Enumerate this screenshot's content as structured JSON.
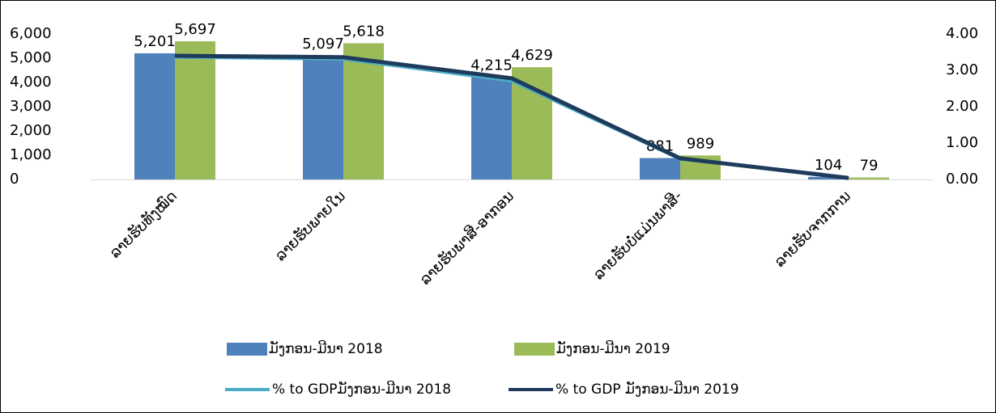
{
  "chart_data": {
    "type": "bar_line",
    "categories": [
      "ລາຍຮັບທັງໝົດ",
      "ລາຍຮັບພາຍໃນ",
      "ລາຍຮັບພາສີ-ອາກອນ",
      "ລາຍຮັບບໍ່ແມ່ນພາສີ-",
      "ລາຍຮັບຈາກການ"
    ],
    "series": [
      {
        "name": "ມັງກອນ-ມີນາ 2018",
        "color": "#4f81bd",
        "type": "bar",
        "values": [
          5201,
          5097,
          4215,
          881,
          104
        ],
        "value_labels": [
          "5,201",
          "5,097",
          "4,215",
          "881",
          "104"
        ]
      },
      {
        "name": "ມັງກອນ-ມີນາ 2019",
        "color": "#9bbb59",
        "type": "bar",
        "values": [
          5697,
          5618,
          4629,
          989,
          79
        ],
        "value_labels": [
          "5,697",
          "5,618",
          "4,629",
          "989",
          "79"
        ]
      },
      {
        "name": "%  to GDPມັງກອນ-ມີນາ 2018",
        "color": "#4bacc6",
        "type": "line",
        "axis": "y2",
        "values": [
          3.35,
          3.3,
          2.7,
          0.55,
          0.05
        ]
      },
      {
        "name": "% to GDP ມັງກອນ-ມີນາ 2019",
        "color": "#1f3b5c",
        "type": "line",
        "axis": "y2",
        "values": [
          3.4,
          3.36,
          2.78,
          0.58,
          0.04
        ]
      }
    ],
    "ylim": [
      0,
      6000
    ],
    "yticks": [
      0,
      {
        "value": 1000,
        "label": "1,000"
      },
      {
        "value": 2000,
        "label": "2,000"
      },
      {
        "value": 3000,
        "label": "3,000"
      },
      {
        "value": 4000,
        "label": "4,000"
      },
      {
        "value": 5000,
        "label": "5,000"
      },
      {
        "value": 6000,
        "label": "6,000"
      }
    ],
    "y2lim": [
      0,
      4
    ],
    "y2ticks": [
      {
        "value": 0,
        "label": "0.00"
      },
      {
        "value": 1,
        "label": "1.00"
      },
      {
        "value": 2,
        "label": "2.00"
      },
      {
        "value": 3,
        "label": "3.00"
      },
      {
        "value": 4,
        "label": "4.00"
      }
    ]
  }
}
